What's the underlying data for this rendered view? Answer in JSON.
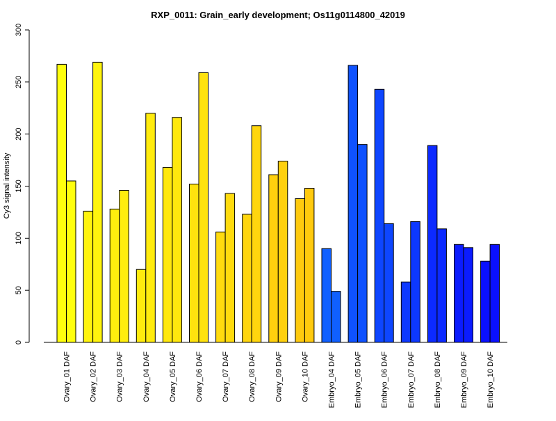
{
  "chart_data": {
    "type": "bar",
    "title": "RXP_0011: Grain_early development; Os11g0114800_42019",
    "xlabel": "",
    "ylabel": "Cy3 signal intensity",
    "ylim": [
      0,
      300
    ],
    "yticks": [
      0,
      50,
      100,
      150,
      200,
      250,
      300
    ],
    "grid": false,
    "categories": [
      "Ovary_01 DAF",
      "Ovary_02 DAF",
      "Ovary_03 DAF",
      "Ovary_04 DAF",
      "Ovary_05 DAF",
      "Ovary_06 DAF",
      "Ovary_07 DAF",
      "Ovary_08 DAF",
      "Ovary_09 DAF",
      "Ovary_10 DAF",
      "Embryo_04 DAF",
      "Embryo_05 DAF",
      "Embryo_06 DAF",
      "Embryo_07 DAF",
      "Embryo_08 DAF",
      "Embryo_09 DAF",
      "Embryo_10 DAF"
    ],
    "series": [
      {
        "values": [
          267,
          126,
          128,
          70,
          168,
          152,
          106,
          123,
          161,
          138,
          90,
          266,
          243,
          58,
          189,
          94,
          78
        ]
      },
      {
        "values": [
          155,
          269,
          146,
          220,
          216,
          259,
          143,
          208,
          174,
          148,
          49,
          190,
          114,
          116,
          109,
          91,
          94
        ]
      }
    ],
    "category_colors": [
      "#FFFF0E",
      "#FFF40E",
      "#FFEE0E",
      "#FFEB0E",
      "#FFE80E",
      "#FFE20E",
      "#FFDB0E",
      "#FFD60E",
      "#FFD00E",
      "#FFCA0E",
      "#1060FF",
      "#0F52FF",
      "#0E46FF",
      "#0D38FF",
      "#0C2AFF",
      "#0B1CFF",
      "#0A10FF"
    ]
  }
}
